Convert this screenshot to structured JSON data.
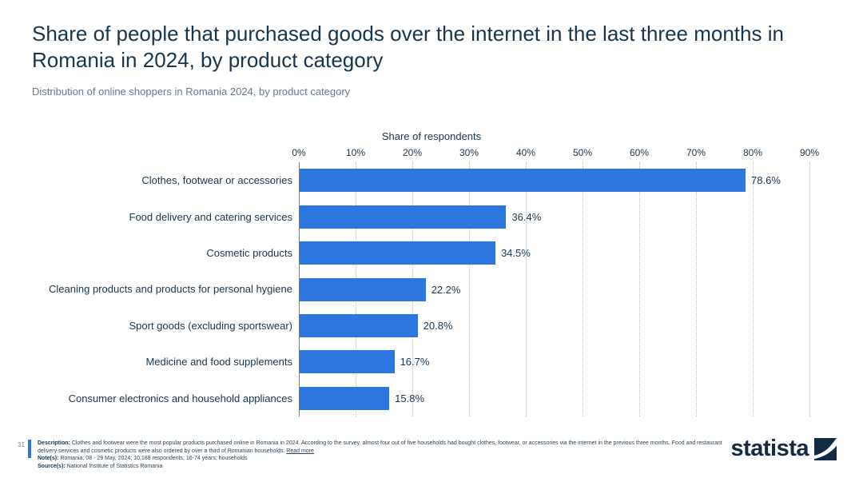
{
  "header": {
    "title": "Share of people that purchased goods over the internet in the last three months in Romania in 2024, by product category",
    "subtitle": "Distribution of online shoppers in Romania 2024, by product category"
  },
  "chart_data": {
    "type": "bar",
    "orientation": "horizontal",
    "axis_title": "Share of respondents",
    "categories": [
      "Clothes, footwear or accessories",
      "Food delivery and catering services",
      "Cosmetic products",
      "Cleaning products and products for personal hygiene",
      "Sport goods (excluding sportswear)",
      "Medicine and food supplements",
      "Consumer electronics and household appliances"
    ],
    "values": [
      78.6,
      36.4,
      34.5,
      22.2,
      20.8,
      16.7,
      15.8
    ],
    "value_labels": [
      "78.6%",
      "36.4%",
      "34.5%",
      "22.2%",
      "20.8%",
      "16.7%",
      "15.8%"
    ],
    "x_ticks": [
      "0%",
      "10%",
      "20%",
      "30%",
      "40%",
      "50%",
      "60%",
      "70%",
      "80%",
      "90%"
    ],
    "xlim": [
      0,
      90
    ],
    "grid": "dotted-vertical",
    "legend": "none",
    "bar_color": "#2d76dd"
  },
  "footer": {
    "page_number": "31",
    "description_label": "Description:",
    "description_text": "Clothes and footwear were the most popular products purchased online in Romania in 2024. According to the survey, almost four out of five households had bought clothes, footwear, or accessories via the internet in the previous three months. Food and restaurant delivery services and cosmetic products were also ordered by over a third of Romanian households.",
    "read_more": "Read more",
    "notes_label": "Note(s):",
    "notes_text": "Romania; 08 - 29 May, 2024; 10,188 respondents; 16-74 years; households",
    "source_label": "Source(s):",
    "source_text": "National Institute of Statistics Romania",
    "brand": "statista"
  },
  "colors": {
    "bar": "#2d76dd",
    "title_text": "#17354e",
    "subtitle_text": "#67798b",
    "gridline": "#b9bec4",
    "axis_line": "#717d88",
    "brand_navy": "#122a42",
    "accent": "#2d76dd",
    "background": "#ffffff"
  }
}
